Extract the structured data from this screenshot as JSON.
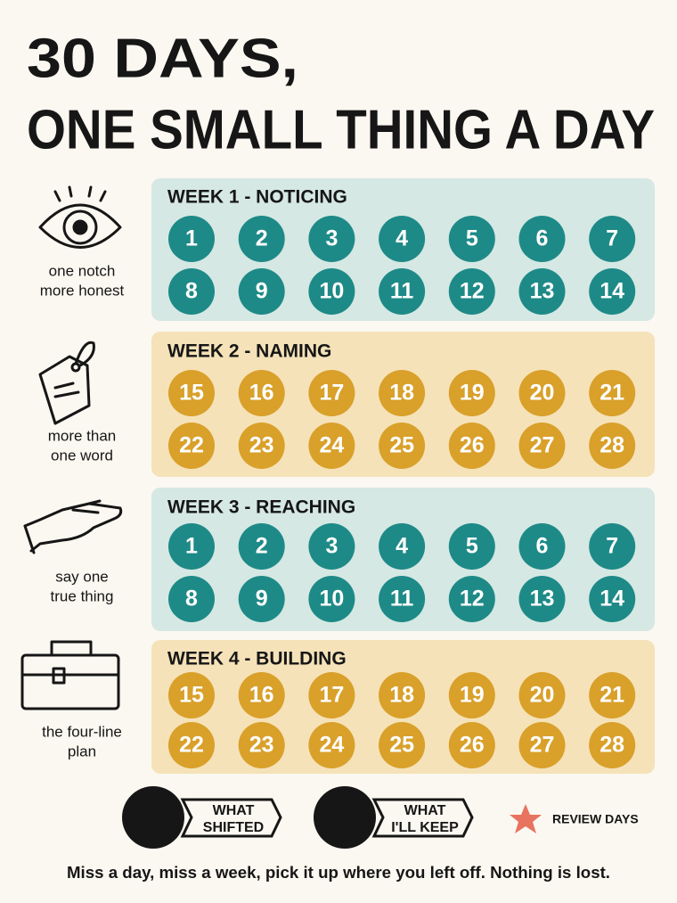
{
  "title": [
    "30 DAYS,",
    "ONE SMALL THING A DAY"
  ],
  "weeks": [
    {
      "title": "WEEK 1 - NOTICING",
      "caption": [
        "one notch",
        "more honest"
      ],
      "theme": "teal",
      "days": [
        1,
        2,
        3,
        4,
        5,
        6,
        7,
        8,
        9,
        10,
        11,
        12,
        13,
        14
      ]
    },
    {
      "title": "WEEK 2 - NAMING",
      "caption": [
        "more than",
        "one word"
      ],
      "theme": "gold",
      "days": [
        15,
        16,
        17,
        18,
        19,
        20,
        21,
        22,
        23,
        24,
        25,
        26,
        27,
        28
      ]
    },
    {
      "title": "WEEK 3 - REACHING",
      "caption": [
        "say one",
        "true thing"
      ],
      "theme": "teal",
      "days": [
        1,
        2,
        3,
        4,
        5,
        6,
        7,
        8,
        9,
        10,
        11,
        12,
        13,
        14
      ]
    },
    {
      "title": "WEEK 4 - BUILDING",
      "caption": [
        "the four-line",
        "plan"
      ],
      "theme": "gold",
      "days": [
        15,
        16,
        17,
        18,
        19,
        20,
        21,
        22,
        23,
        24,
        25,
        26,
        27,
        28
      ]
    }
  ],
  "legend": {
    "shifted": [
      "WHAT",
      "SHIFTED"
    ],
    "keep": [
      "WHAT",
      "I'LL KEEP"
    ],
    "review": "REVIEW DAYS"
  },
  "note": "Miss a day, miss a week, pick it up where you left off. Nothing is lost."
}
